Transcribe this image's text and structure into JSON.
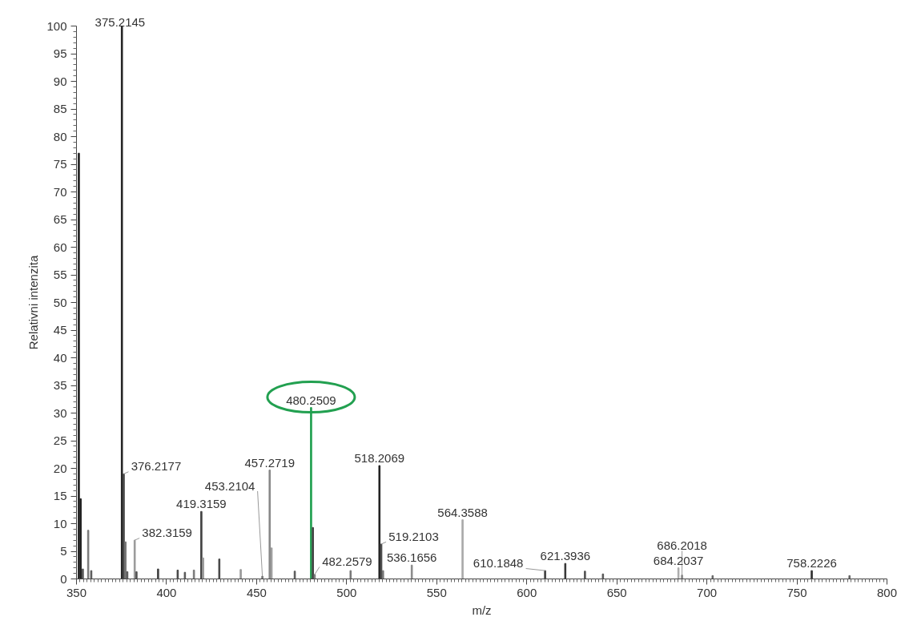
{
  "chart_data": {
    "type": "bar",
    "xlabel": "m/z",
    "ylabel": "Relativni intenzita",
    "x": [
      351.3,
      352.3,
      353.5,
      356.5,
      358.2,
      375.2145,
      376.2177,
      377.2,
      378.2,
      382.3159,
      383.3,
      395.3,
      406.2,
      410.2,
      415.2,
      419.3159,
      420.3,
      429.3,
      441.2,
      453.2104,
      457.2719,
      458.3,
      471.2,
      480.2509,
      481.25,
      482.2579,
      502.2,
      518.2069,
      519.2103,
      520.2,
      536.1656,
      564.3588,
      610.1848,
      621.3936,
      632.3,
      642.3,
      684.2037,
      686.2018,
      703.2,
      758.2226,
      779.2
    ],
    "values": [
      77,
      14.5,
      1.8,
      8.8,
      1.5,
      100,
      19,
      6.7,
      1.3,
      7,
      1.3,
      1.8,
      1.6,
      1.2,
      1.6,
      12.2,
      3.8,
      3.6,
      1.7,
      0.5,
      19.7,
      5.6,
      1.4,
      31,
      9.3,
      0.8,
      1.5,
      20.5,
      6.3,
      1.5,
      2.5,
      10.7,
      1.5,
      2.8,
      1.4,
      0.9,
      2.0,
      0.7,
      0.6,
      1.5,
      0.6
    ],
    "colors": [
      "#222222",
      "#222222",
      "#555555",
      "#777777",
      "#555555",
      "#222222",
      "#444444",
      "#777777",
      "#555555",
      "#999999",
      "#555555",
      "#444444",
      "#444444",
      "#555555",
      "#777777",
      "#444444",
      "#999999",
      "#444444",
      "#999999",
      "#777777",
      "#888888",
      "#999999",
      "#555555",
      "#22a050",
      "#444444",
      "#777777",
      "#777777",
      "#222222",
      "#444444",
      "#777777",
      "#888888",
      "#aaaaaa",
      "#444444",
      "#333333",
      "#555555",
      "#555555",
      "#aaaaaa",
      "#888888",
      "#666666",
      "#333333",
      "#666666"
    ],
    "annotations": [
      {
        "text": "375.2145",
        "x": 375.2145,
        "y": 100
      },
      {
        "text": "376.2177",
        "x": 376.2177,
        "y": 19
      },
      {
        "text": "382.3159",
        "x": 382.3159,
        "y": 7
      },
      {
        "text": "419.3159",
        "x": 419.3159,
        "y": 12.2
      },
      {
        "text": "453.2104",
        "x": 453.2104,
        "y": 0.5
      },
      {
        "text": "457.2719",
        "x": 457.2719,
        "y": 19.7
      },
      {
        "text": "480.2509",
        "x": 480.2509,
        "y": 31
      },
      {
        "text": "482.2579",
        "x": 482.2579,
        "y": 0.8
      },
      {
        "text": "518.2069",
        "x": 518.2069,
        "y": 20.5
      },
      {
        "text": "519.2103",
        "x": 519.2103,
        "y": 6.3
      },
      {
        "text": "536.1656",
        "x": 536.1656,
        "y": 2.5
      },
      {
        "text": "564.3588",
        "x": 564.3588,
        "y": 10.7
      },
      {
        "text": "610.1848",
        "x": 610.1848,
        "y": 1.5
      },
      {
        "text": "621.3936",
        "x": 621.3936,
        "y": 2.8
      },
      {
        "text": "684.2037",
        "x": 684.2037,
        "y": 2.0
      },
      {
        "text": "686.2018",
        "x": 686.2018,
        "y": 0.7
      },
      {
        "text": "758.2226",
        "x": 758.2226,
        "y": 1.5
      }
    ],
    "xlim": [
      350,
      800
    ],
    "ylim": [
      0,
      100
    ],
    "xticks": [
      350,
      400,
      450,
      500,
      550,
      600,
      650,
      700,
      750,
      800
    ],
    "yticks": [
      0,
      5,
      10,
      15,
      20,
      25,
      30,
      35,
      40,
      45,
      50,
      55,
      60,
      65,
      70,
      75,
      80,
      85,
      90,
      95,
      100
    ],
    "grid": false
  }
}
